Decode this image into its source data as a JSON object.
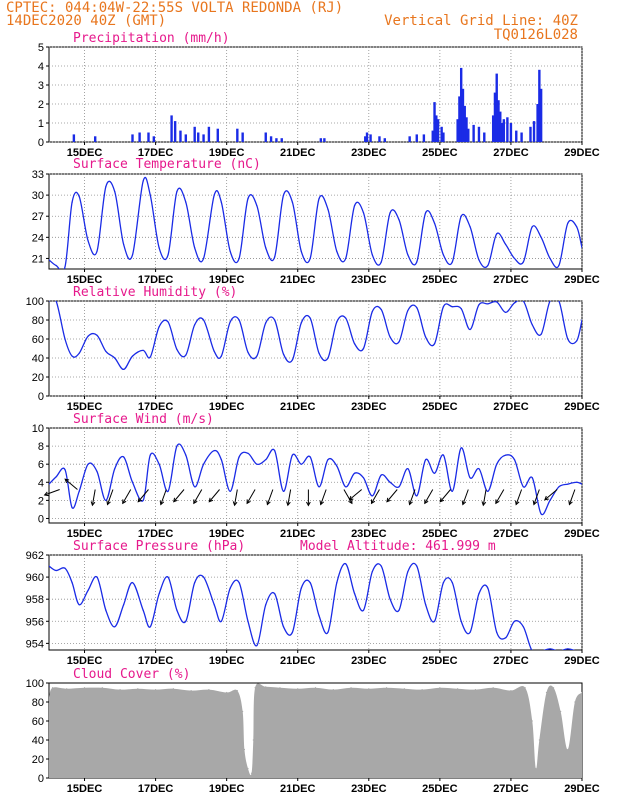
{
  "header": {
    "line1": "CPTEC:   044:04W-22:55S   VOLTA REDONDA (RJ)",
    "line2": "14DEC2020 40Z (GMT)",
    "grid_note": "Vertical Grid Line: 40Z",
    "run_code": "TQ0126L028"
  },
  "colors": {
    "header": "#e8761e",
    "titles": "#e6198c",
    "series": "#1a2be6",
    "cloud": "#a8a8a8",
    "grid": "#8c8c8c"
  },
  "chart_data": [
    {
      "id": "precip",
      "type": "bar",
      "title": "Precipitation (mm/h)",
      "xticks": [
        "15DEC",
        "17DEC",
        "19DEC",
        "21DEC",
        "23DEC",
        "25DEC",
        "27DEC",
        "29DEC"
      ],
      "ylim": [
        0,
        5
      ],
      "yticks": [
        "0",
        "1",
        "2",
        "3",
        "4",
        "5"
      ],
      "x": [
        14.7,
        15.3,
        16.35,
        16.55,
        16.8,
        16.95,
        17.45,
        17.55,
        17.7,
        17.85,
        18.1,
        18.2,
        18.35,
        18.5,
        18.75,
        19.3,
        19.45,
        20.1,
        20.25,
        20.4,
        20.55,
        21.65,
        21.75,
        22.9,
        22.95,
        23.05,
        23.3,
        23.45,
        24.15,
        24.35,
        24.55,
        24.8,
        24.85,
        24.9,
        24.95,
        25.05,
        25.1,
        25.5,
        25.55,
        25.6,
        25.65,
        25.7,
        25.75,
        25.8,
        25.95,
        26.1,
        26.25,
        26.5,
        26.55,
        26.6,
        26.65,
        26.7,
        26.75,
        26.8,
        26.9,
        27.0,
        27.15,
        27.3,
        27.55,
        27.65,
        27.75,
        27.8,
        27.85
      ],
      "values": [
        0.4,
        0.3,
        0.4,
        0.5,
        0.5,
        0.3,
        1.4,
        1.1,
        0.6,
        0.4,
        0.8,
        0.5,
        0.4,
        0.8,
        0.7,
        0.7,
        0.5,
        0.5,
        0.3,
        0.2,
        0.2,
        0.2,
        0.2,
        0.3,
        0.5,
        0.4,
        0.3,
        0.2,
        0.3,
        0.4,
        0.4,
        0.6,
        2.1,
        1.4,
        1.2,
        0.8,
        0.5,
        1.2,
        2.4,
        3.9,
        2.8,
        1.9,
        1.3,
        0.7,
        0.9,
        0.8,
        0.5,
        1.4,
        2.6,
        3.6,
        2.2,
        1.6,
        1.0,
        1.2,
        1.3,
        1.0,
        0.6,
        0.5,
        0.8,
        1.1,
        2.0,
        3.8,
        2.8
      ]
    },
    {
      "id": "temp",
      "type": "line",
      "title": "Surface Temperature (nC)",
      "xticks": [
        "15DEC",
        "17DEC",
        "19DEC",
        "21DEC",
        "23DEC",
        "25DEC",
        "27DEC",
        "29DEC"
      ],
      "ylim": [
        19.5,
        33
      ],
      "yticks": [
        "21",
        "24",
        "27",
        "30",
        "33"
      ],
      "ytick_values": [
        21,
        24,
        27,
        30,
        33
      ],
      "x": [
        14.0,
        14.2,
        14.45,
        14.65,
        14.85,
        15.1,
        15.35,
        15.6,
        15.85,
        16.1,
        16.35,
        16.65,
        16.85,
        17.1,
        17.35,
        17.6,
        17.85,
        18.1,
        18.35,
        18.65,
        18.85,
        19.1,
        19.35,
        19.6,
        19.85,
        20.1,
        20.35,
        20.6,
        20.85,
        21.1,
        21.35,
        21.6,
        21.85,
        22.1,
        22.35,
        22.6,
        22.85,
        23.1,
        23.35,
        23.6,
        23.85,
        24.1,
        24.35,
        24.6,
        24.85,
        25.1,
        25.35,
        25.6,
        25.85,
        26.1,
        26.35,
        26.6,
        26.85,
        27.1,
        27.35,
        27.6,
        27.85,
        28.1,
        28.35,
        28.6,
        28.85,
        29.0
      ],
      "values": [
        20.8,
        20.0,
        19.8,
        29.0,
        29.8,
        23.5,
        22.0,
        31.2,
        30.5,
        23.0,
        21.5,
        32.0,
        30.0,
        22.5,
        21.5,
        30.5,
        29.0,
        22.5,
        21.0,
        30.0,
        29.0,
        22.0,
        21.0,
        29.5,
        28.5,
        22.5,
        21.2,
        30.0,
        29.0,
        22.0,
        21.0,
        29.5,
        28.0,
        22.0,
        21.0,
        28.5,
        27.5,
        21.5,
        20.5,
        27.5,
        26.5,
        21.5,
        20.5,
        27.5,
        26.0,
        21.5,
        20.5,
        27.0,
        25.5,
        20.8,
        20.0,
        24.5,
        23.0,
        21.0,
        20.5,
        25.5,
        24.0,
        21.0,
        20.0,
        26.0,
        25.5,
        22.5
      ]
    },
    {
      "id": "rh",
      "type": "line",
      "title": "Relative Humidity (%)",
      "xticks": [
        "15DEC",
        "17DEC",
        "19DEC",
        "21DEC",
        "23DEC",
        "25DEC",
        "27DEC",
        "29DEC"
      ],
      "ylim": [
        0,
        100
      ],
      "yticks": [
        "0",
        "20",
        "40",
        "60",
        "80",
        "100"
      ],
      "x": [
        14.0,
        14.2,
        14.45,
        14.65,
        14.85,
        15.1,
        15.35,
        15.6,
        15.85,
        16.1,
        16.35,
        16.65,
        16.85,
        17.1,
        17.35,
        17.6,
        17.85,
        18.1,
        18.35,
        18.65,
        18.85,
        19.1,
        19.35,
        19.6,
        19.85,
        20.1,
        20.35,
        20.6,
        20.85,
        21.1,
        21.35,
        21.6,
        21.85,
        22.1,
        22.35,
        22.6,
        22.85,
        23.1,
        23.35,
        23.6,
        23.85,
        24.1,
        24.35,
        24.6,
        24.85,
        25.1,
        25.35,
        25.6,
        25.85,
        26.1,
        26.35,
        26.6,
        26.85,
        27.1,
        27.35,
        27.6,
        27.85,
        28.1,
        28.35,
        28.6,
        28.85,
        29.0
      ],
      "values": [
        100,
        100,
        60,
        42,
        45,
        63,
        64,
        47,
        40,
        28,
        42,
        48,
        41,
        73,
        78,
        49,
        43,
        75,
        80,
        47,
        42,
        78,
        80,
        46,
        42,
        77,
        80,
        44,
        38,
        77,
        82,
        45,
        40,
        78,
        82,
        55,
        50,
        89,
        91,
        62,
        57,
        90,
        93,
        62,
        55,
        94,
        94,
        92,
        70,
        96,
        97,
        99,
        88,
        98,
        100,
        75,
        65,
        100,
        100,
        60,
        58,
        80
      ]
    },
    {
      "id": "wind",
      "type": "line",
      "title": "Surface Wind (m/s)",
      "xticks": [
        "15DEC",
        "17DEC",
        "19DEC",
        "21DEC",
        "23DEC",
        "25DEC",
        "27DEC",
        "29DEC"
      ],
      "ylim": [
        -0.5,
        10
      ],
      "yticks": [
        "0",
        "2",
        "4",
        "6",
        "8",
        "10"
      ],
      "ytick_values": [
        0,
        2,
        4,
        6,
        8,
        10
      ],
      "x": [
        14.0,
        14.2,
        14.45,
        14.65,
        14.85,
        15.1,
        15.35,
        15.6,
        15.85,
        16.1,
        16.35,
        16.65,
        16.85,
        17.1,
        17.35,
        17.6,
        17.85,
        18.1,
        18.35,
        18.65,
        18.85,
        19.1,
        19.35,
        19.6,
        19.85,
        20.1,
        20.35,
        20.6,
        20.85,
        21.1,
        21.35,
        21.6,
        21.85,
        22.1,
        22.35,
        22.6,
        22.85,
        23.1,
        23.35,
        23.6,
        23.85,
        24.1,
        24.35,
        24.6,
        24.85,
        25.1,
        25.35,
        25.6,
        25.85,
        26.1,
        26.35,
        26.6,
        26.85,
        27.1,
        27.35,
        27.6,
        27.85,
        28.1,
        28.35,
        28.6,
        28.85,
        29.0
      ],
      "values": [
        3.8,
        4.6,
        5.4,
        1.2,
        3.0,
        6.0,
        5.2,
        2.0,
        5.5,
        6.8,
        4.0,
        2.0,
        7.0,
        6.0,
        3.0,
        8.0,
        7.0,
        3.5,
        6.0,
        7.5,
        6.5,
        3.0,
        6.8,
        7.2,
        6.0,
        6.5,
        7.5,
        3.0,
        7.0,
        6.0,
        6.8,
        3.5,
        6.5,
        5.8,
        3.5,
        5.0,
        4.5,
        2.5,
        4.8,
        4.0,
        3.5,
        5.5,
        2.5,
        6.5,
        5.0,
        7.0,
        3.0,
        7.8,
        4.5,
        5.5,
        3.0,
        6.0,
        7.0,
        6.5,
        3.5,
        4.5,
        0.5,
        2.0,
        3.5,
        3.8,
        4.0,
        3.8
      ]
    },
    {
      "id": "pressure",
      "type": "line",
      "title": "Surface Pressure (hPa)",
      "annotation": "Model Altitude: 461.999 m",
      "xticks": [
        "15DEC",
        "17DEC",
        "19DEC",
        "21DEC",
        "23DEC",
        "25DEC",
        "27DEC",
        "29DEC"
      ],
      "ylim": [
        953.4,
        962
      ],
      "yticks": [
        "954",
        "956",
        "958",
        "960",
        "962"
      ],
      "ytick_values": [
        954,
        956,
        958,
        960,
        962
      ],
      "x": [
        14.0,
        14.2,
        14.45,
        14.65,
        14.85,
        15.1,
        15.35,
        15.6,
        15.85,
        16.1,
        16.35,
        16.65,
        16.85,
        17.1,
        17.35,
        17.6,
        17.85,
        18.1,
        18.35,
        18.65,
        18.85,
        19.1,
        19.35,
        19.6,
        19.85,
        20.1,
        20.35,
        20.6,
        20.85,
        21.1,
        21.35,
        21.6,
        21.85,
        22.1,
        22.35,
        22.6,
        22.85,
        23.1,
        23.35,
        23.6,
        23.85,
        24.1,
        24.35,
        24.6,
        24.85,
        25.1,
        25.35,
        25.6,
        25.85,
        26.1,
        26.35,
        26.6,
        26.85,
        27.1,
        27.35,
        27.6,
        27.85,
        28.1,
        28.35,
        28.6,
        28.85
      ],
      "values": [
        961.0,
        960.6,
        960.8,
        959.5,
        957.5,
        958.8,
        960.0,
        957.0,
        955.5,
        957.5,
        959.5,
        957.0,
        955.5,
        958.5,
        960.0,
        957.0,
        956.0,
        959.5,
        960.0,
        957.5,
        956.0,
        959.0,
        959.5,
        956.0,
        953.8,
        957.5,
        958.5,
        955.5,
        955.0,
        959.0,
        959.5,
        956.5,
        955.0,
        959.5,
        961.2,
        958.5,
        957.0,
        960.5,
        961.0,
        958.0,
        957.0,
        960.5,
        961.0,
        957.5,
        956.0,
        959.5,
        959.5,
        956.0,
        955.0,
        958.5,
        959.0,
        955.0,
        954.5,
        956.0,
        955.5,
        953.3,
        953.3,
        953.5,
        953.3,
        953.5,
        953.3
      ]
    },
    {
      "id": "cloud",
      "type": "area",
      "title": "Cloud Cover (%)",
      "xticks": [
        "15DEC",
        "17DEC",
        "19DEC",
        "21DEC",
        "23DEC",
        "25DEC",
        "27DEC",
        "29DEC"
      ],
      "ylim": [
        0,
        100
      ],
      "yticks": [
        "0",
        "20",
        "40",
        "60",
        "80",
        "100"
      ],
      "x": [
        14.0,
        14.1,
        14.5,
        15.0,
        15.5,
        16.0,
        16.5,
        17.0,
        17.5,
        18.0,
        18.5,
        19.0,
        19.3,
        19.45,
        19.5,
        19.6,
        19.7,
        19.75,
        19.8,
        20.1,
        20.5,
        21.0,
        21.5,
        22.0,
        22.5,
        23.0,
        23.5,
        24.0,
        24.5,
        25.0,
        25.5,
        26.0,
        26.5,
        27.0,
        27.4,
        27.6,
        27.7,
        27.8,
        28.0,
        28.2,
        28.4,
        28.6,
        28.8,
        29.0
      ],
      "values": [
        85,
        95,
        94,
        95,
        95,
        93,
        94,
        93,
        94,
        92,
        93,
        90,
        92,
        70,
        30,
        10,
        5,
        40,
        95,
        96,
        95,
        94,
        95,
        93,
        95,
        94,
        95,
        94,
        93,
        95,
        94,
        93,
        95,
        92,
        95,
        60,
        10,
        40,
        90,
        95,
        70,
        30,
        80,
        90
      ]
    }
  ]
}
